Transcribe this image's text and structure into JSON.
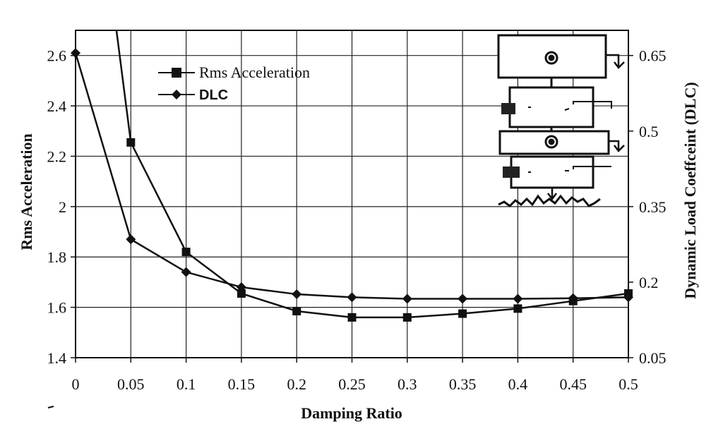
{
  "chart_data": {
    "type": "line",
    "xlabel": "Damping Ratio",
    "ylabel": "Rms Acceleration",
    "y2label": "Dynamic Load Coeffceint (DLC)",
    "xlim": [
      0,
      0.5
    ],
    "ylim": [
      1.4,
      2.7
    ],
    "y2lim": [
      0.05,
      0.7
    ],
    "grid": true,
    "legend_position": "top-left",
    "x_ticks": [
      "0",
      "0.05",
      "0.1",
      "0.15",
      "0.2",
      "0.25",
      "0.3",
      "0.35",
      "0.4",
      "0.45",
      "0.5"
    ],
    "y_ticks": [
      "1.4",
      "1.6",
      "1.8",
      "2",
      "2.2",
      "2.4",
      "2.6"
    ],
    "y2_ticks": [
      "0.05",
      "0.2",
      "0.35",
      "0.5",
      "0.65"
    ],
    "series": [
      {
        "name": "Rms Acceleration",
        "axis": "left",
        "marker": "square",
        "x": [
          0.05,
          0.1,
          0.15,
          0.2,
          0.25,
          0.3,
          0.35,
          0.4,
          0.45,
          0.5
        ],
        "values": [
          2.255,
          1.82,
          1.655,
          1.585,
          1.56,
          1.56,
          1.575,
          1.595,
          1.625,
          1.655
        ],
        "upper_branch_x": [
          0.037,
          0.05
        ],
        "upper_branch_values": [
          2.7,
          2.255
        ]
      },
      {
        "name": "DLC",
        "axis": "right",
        "marker": "diamond",
        "x": [
          0,
          0.05,
          0.1,
          0.15,
          0.2,
          0.25,
          0.3,
          0.35,
          0.4,
          0.45,
          0.5
        ],
        "values": [
          0.655,
          0.285,
          0.22,
          0.19,
          0.176,
          0.17,
          0.167,
          0.167,
          0.167,
          0.168,
          0.17
        ]
      }
    ]
  }
}
